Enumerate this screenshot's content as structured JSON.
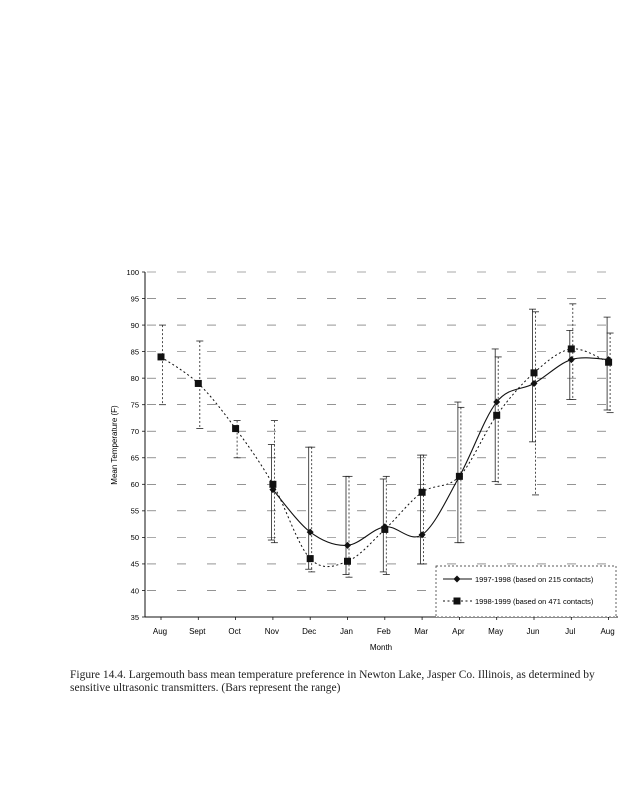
{
  "chart_data": {
    "type": "line",
    "title": "",
    "xlabel": "Month",
    "ylabel": "Mean Temperature (F)",
    "ylim": [
      35,
      100
    ],
    "yticks": [
      35,
      40,
      45,
      50,
      55,
      60,
      65,
      70,
      75,
      80,
      85,
      90,
      95,
      100
    ],
    "categories": [
      "Aug",
      "Sept",
      "Oct",
      "Nov",
      "Dec",
      "Jan",
      "Feb",
      "Mar",
      "Apr",
      "May",
      "Jun",
      "Jul",
      "Aug"
    ],
    "grid": "dashed horizontal",
    "legend_position": "bottom-right",
    "series": [
      {
        "name": "1997-1998 (based on 215 contacts)",
        "style": "solid",
        "marker": "diamond",
        "color": "#111111",
        "values": [
          null,
          null,
          null,
          59,
          51,
          48.5,
          52,
          50.5,
          61.5,
          75.5,
          79,
          83.5,
          83.5
        ],
        "ranges": [
          null,
          null,
          null,
          [
            49.5,
            67.5
          ],
          [
            44,
            67
          ],
          [
            43,
            61.5
          ],
          [
            43.5,
            61
          ],
          [
            45,
            65.5
          ],
          [
            49,
            75.5
          ],
          [
            60.5,
            85.5
          ],
          [
            68,
            93
          ],
          [
            76,
            89
          ],
          [
            74,
            91.5
          ]
        ]
      },
      {
        "name": "1998-1999 (based on 471 contacts)",
        "style": "dotted",
        "marker": "square",
        "color": "#111111",
        "values": [
          84,
          79,
          70.5,
          60,
          46,
          45.5,
          51.5,
          58.5,
          61.5,
          73,
          81,
          85.5,
          83
        ],
        "ranges": [
          [
            75,
            90
          ],
          [
            70.5,
            87
          ],
          [
            65,
            72
          ],
          [
            49,
            72
          ],
          [
            43.5,
            67
          ],
          [
            42.5,
            61.5
          ],
          [
            43,
            61.5
          ],
          [
            45,
            65.5
          ],
          [
            49,
            74.5
          ],
          [
            60,
            84
          ],
          [
            58,
            92.5
          ],
          [
            76,
            94
          ],
          [
            73.5,
            88.5
          ]
        ]
      }
    ]
  },
  "caption": {
    "line1": "Figure 14.4.  Largemouth bass mean temperature preference in Newton Lake, Jasper Co. Illinois, as determined by",
    "line2": "sensitive ultrasonic transmitters.  (Bars represent the range)"
  }
}
